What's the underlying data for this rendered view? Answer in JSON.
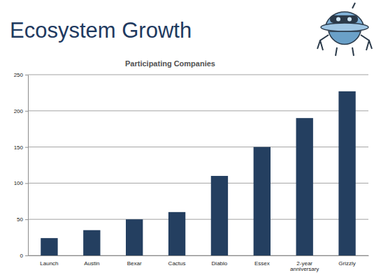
{
  "slide": {
    "title": "Ecosystem Growth"
  },
  "chart_data": {
    "type": "bar",
    "title": "Participating Companies",
    "categories": [
      "Launch",
      "Austin",
      "Bexar",
      "Cactus",
      "Diablo",
      "Essex",
      "2-year anniversary",
      "Grizzly"
    ],
    "values": [
      24,
      35,
      50,
      60,
      110,
      150,
      190,
      227
    ],
    "color": "#243f60",
    "ylim": [
      0,
      250
    ],
    "yticks": [
      0,
      50,
      100,
      150,
      200,
      250
    ],
    "grid": true
  }
}
